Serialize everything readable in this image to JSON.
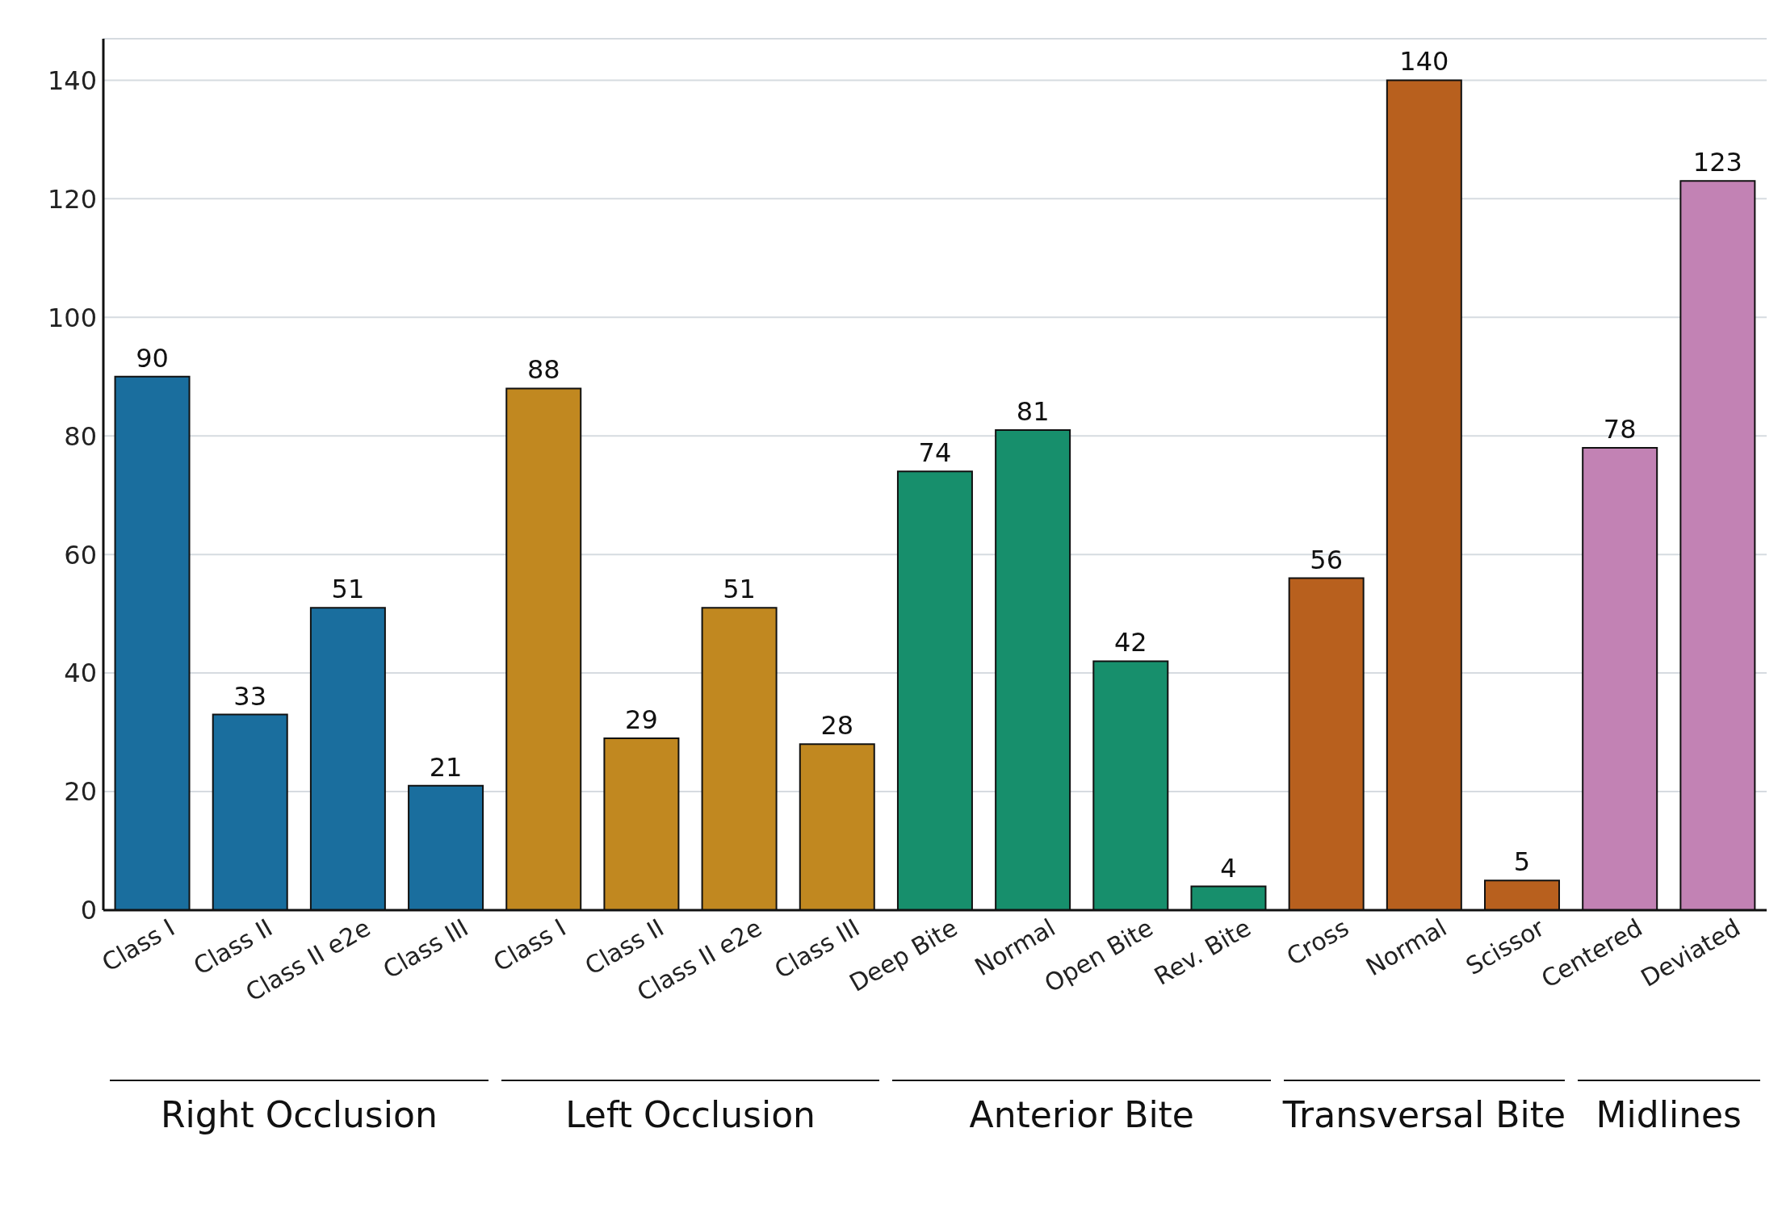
{
  "chart_data": {
    "type": "bar",
    "categories": [
      "Class I",
      "Class II",
      "Class II e2e",
      "Class III",
      "Class I",
      "Class II",
      "Class II e2e",
      "Class III",
      "Deep Bite",
      "Normal",
      "Open Bite",
      "Rev. Bite",
      "Cross",
      "Normal",
      "Scissor",
      "Centered",
      "Deviated"
    ],
    "values": [
      90,
      33,
      51,
      21,
      88,
      29,
      51,
      28,
      74,
      81,
      42,
      4,
      56,
      140,
      5,
      78,
      123
    ],
    "colors": [
      "#1a6e9e",
      "#1a6e9e",
      "#1a6e9e",
      "#1a6e9e",
      "#c18820",
      "#c18820",
      "#c18820",
      "#c18820",
      "#178f6c",
      "#178f6c",
      "#178f6c",
      "#178f6c",
      "#b8601e",
      "#b8601e",
      "#b8601e",
      "#c282b4",
      "#c282b4"
    ],
    "annotations": [
      "Right Occlusion",
      "Left Occlusion",
      "Anterior Bite",
      "Transversal Bite",
      "Midlines"
    ],
    "ylim": [
      0,
      147
    ],
    "yticks": [
      0,
      20,
      40,
      60,
      80,
      100,
      120,
      140
    ],
    "grid": "y",
    "data_labels": true
  }
}
